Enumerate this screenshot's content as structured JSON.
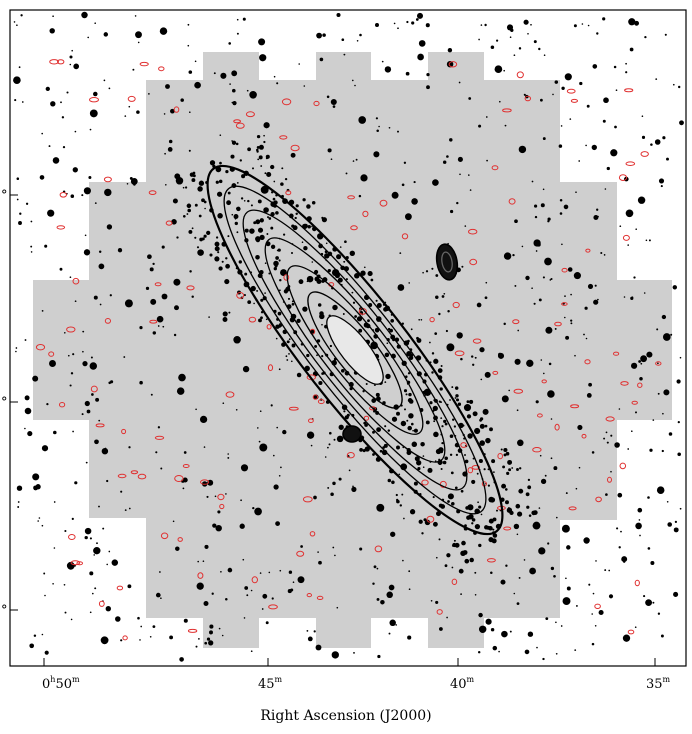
{
  "figure": {
    "type": "sky map with contour overlay",
    "x_axis": {
      "label": "Right Ascension (J2000)",
      "ticks": [
        {
          "hours": "0",
          "minutes": "50",
          "hour_sup": "h",
          "min_sup": "m"
        },
        {
          "minutes": "45",
          "min_sup": "m"
        },
        {
          "minutes": "40",
          "min_sup": "m"
        },
        {
          "minutes": "35",
          "min_sup": "m"
        }
      ]
    },
    "y_axis": {
      "label": "",
      "ticks_partially_visible": [
        "°",
        "°",
        "°"
      ]
    },
    "colors": {
      "coverage_fill": "#cfcfcf",
      "contours": "#000000",
      "red_sources": "#e03030",
      "black_sources": "#000000",
      "background": "#ffffff"
    }
  }
}
